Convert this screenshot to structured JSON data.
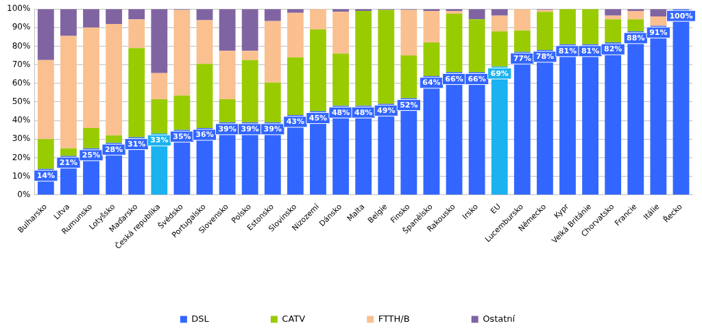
{
  "chart_data": {
    "type": "bar",
    "stacked": true,
    "grid": true,
    "legend": "bottom",
    "categories": [
      "Bulharsko",
      "Litva",
      "Rumunsko",
      "Lotyšsko",
      "Maďarsko",
      "Česká republika",
      "Švédsko",
      "Portugalsko",
      "Slovensko",
      "Polsko",
      "Estonsko",
      "Slovinsko",
      "Nizozemí",
      "Dánsko",
      "Malta",
      "Belgie",
      "Finsko",
      "Španělsko",
      "Rakousko",
      "Irsko",
      "EU",
      "Lucembursko",
      "Německo",
      "Kypr",
      "Velká Británie",
      "Chorvatsko",
      "Francie",
      "Itálie",
      "Řecko"
    ],
    "ylim": [
      0,
      100
    ],
    "yticks": [
      {
        "value": 0,
        "label": "0%"
      },
      {
        "value": 10,
        "label": "10%"
      },
      {
        "value": 20,
        "label": "20%"
      },
      {
        "value": 30,
        "label": "30%"
      },
      {
        "value": 40,
        "label": "40%"
      },
      {
        "value": 50,
        "label": "50%"
      },
      {
        "value": 60,
        "label": "60%"
      },
      {
        "value": 70,
        "label": "70%"
      },
      {
        "value": 80,
        "label": "80%"
      },
      {
        "value": 90,
        "label": "90%"
      },
      {
        "value": 100,
        "label": "100%"
      }
    ],
    "series": [
      {
        "name": "DSL",
        "data_labels": true,
        "colors": [
          "#3366ff",
          "#3366ff",
          "#3366ff",
          "#3366ff",
          "#3366ff",
          "#1ab2f0",
          "#3366ff",
          "#3366ff",
          "#3366ff",
          "#3366ff",
          "#3366ff",
          "#3366ff",
          "#3366ff",
          "#3366ff",
          "#3366ff",
          "#3366ff",
          "#3366ff",
          "#3366ff",
          "#3366ff",
          "#3366ff",
          "#1ab2f0",
          "#3366ff",
          "#3366ff",
          "#3366ff",
          "#3366ff",
          "#3366ff",
          "#3366ff",
          "#3366ff",
          "#3366ff"
        ],
        "values": [
          14,
          21,
          25,
          28,
          31,
          33,
          35,
          36,
          39,
          39,
          39,
          43,
          45,
          48,
          48,
          49,
          52,
          64,
          66,
          66,
          69,
          77,
          78,
          81,
          81,
          82,
          88,
          91,
          100
        ],
        "value_labels": [
          "14%",
          "21%",
          "25%",
          "28%",
          "31%",
          "33%",
          "35%",
          "36%",
          "39%",
          "39%",
          "39%",
          "43%",
          "45%",
          "48%",
          "48%",
          "49%",
          "52%",
          "64%",
          "66%",
          "66%",
          "69%",
          "77%",
          "78%",
          "81%",
          "81%",
          "82%",
          "88%",
          "91%",
          "100%"
        ]
      },
      {
        "name": "CATV",
        "color": "#99cc00",
        "values": [
          16,
          4,
          11,
          4,
          48,
          18.5,
          18.5,
          34.5,
          12.5,
          33.5,
          21.5,
          31,
          44,
          28,
          51,
          50.5,
          23,
          18,
          31.5,
          28.5,
          19,
          11.5,
          20.5,
          19,
          19,
          12.5,
          6.5,
          0,
          0
        ]
      },
      {
        "name": "FTTH/B",
        "color": "#fac090",
        "values": [
          42.5,
          60.5,
          54,
          60,
          15.5,
          14,
          46,
          23.5,
          26,
          5,
          33,
          24,
          11,
          22.5,
          0,
          0,
          24.5,
          17,
          1.5,
          0,
          8.5,
          11.5,
          1,
          0,
          0,
          2,
          4.5,
          5,
          0
        ]
      },
      {
        "name": "Ostatní",
        "color": "#8064a2",
        "values": [
          27.5,
          14.5,
          10,
          8,
          5.5,
          34.5,
          0.5,
          6,
          22.5,
          22.5,
          6.5,
          2,
          0,
          1.5,
          1,
          0.5,
          0.5,
          1,
          1,
          5.5,
          3.5,
          0,
          0.5,
          0,
          0,
          3.5,
          1,
          4,
          0
        ]
      }
    ]
  }
}
